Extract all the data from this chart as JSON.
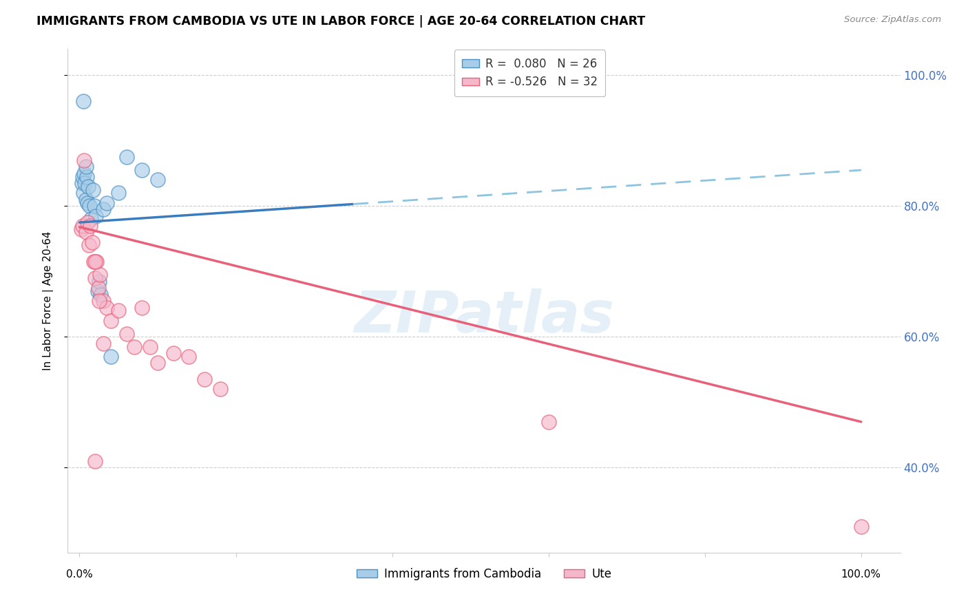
{
  "title": "IMMIGRANTS FROM CAMBODIA VS UTE IN LABOR FORCE | AGE 20-64 CORRELATION CHART",
  "source": "Source: ZipAtlas.com",
  "ylabel": "In Labor Force | Age 20-64",
  "legend_label1": "Immigrants from Cambodia",
  "legend_label2": "Ute",
  "R1": 0.08,
  "N1": 26,
  "R2": -0.526,
  "N2": 32,
  "color_blue_fill": "#a8cde8",
  "color_pink_fill": "#f5b8cb",
  "color_blue_edge": "#4a90c4",
  "color_pink_edge": "#e8607a",
  "color_blue_line": "#3a7cbd",
  "color_pink_line": "#e8607a",
  "color_dashed": "#8dc4e0",
  "watermark_text": "ZIPatlas",
  "blue_x": [
    0.3,
    0.4,
    0.5,
    0.6,
    0.7,
    0.8,
    0.9,
    1.0,
    1.1,
    1.3,
    1.5,
    1.7,
    1.9,
    2.1,
    2.3,
    2.5,
    2.7,
    3.0,
    3.5,
    4.0,
    5.0,
    6.0,
    8.0,
    10.0,
    0.5,
    0.8
  ],
  "blue_y": [
    83.5,
    84.5,
    82.0,
    85.0,
    83.5,
    81.0,
    84.5,
    80.5,
    83.0,
    80.0,
    78.0,
    82.5,
    80.0,
    78.5,
    67.0,
    68.5,
    66.5,
    79.5,
    80.5,
    57.0,
    82.0,
    87.5,
    85.5,
    84.0,
    96.0,
    86.0
  ],
  "pink_x": [
    0.2,
    0.4,
    0.6,
    0.8,
    1.0,
    1.2,
    1.4,
    1.6,
    1.8,
    2.0,
    2.2,
    2.4,
    2.6,
    3.0,
    3.5,
    4.0,
    5.0,
    6.0,
    7.0,
    8.0,
    9.0,
    10.0,
    12.0,
    14.0,
    16.0,
    18.0,
    2.0,
    2.5,
    3.0,
    2.0,
    60.0,
    100.0
  ],
  "pink_y": [
    76.5,
    77.0,
    87.0,
    76.0,
    77.5,
    74.0,
    77.0,
    74.5,
    71.5,
    69.0,
    71.5,
    67.5,
    69.5,
    65.5,
    64.5,
    62.5,
    64.0,
    60.5,
    58.5,
    64.5,
    58.5,
    56.0,
    57.5,
    57.0,
    53.5,
    52.0,
    71.5,
    65.5,
    59.0,
    41.0,
    47.0,
    31.0
  ],
  "blue_line_x0": 0.0,
  "blue_line_x1": 100.0,
  "blue_line_y0": 77.5,
  "blue_line_y1": 85.5,
  "blue_solid_end": 35.0,
  "pink_line_x0": 0.0,
  "pink_line_x1": 100.0,
  "pink_line_y0": 76.8,
  "pink_line_y1": 47.0,
  "ylim": [
    27.0,
    104.0
  ],
  "xlim": [
    -1.5,
    105.0
  ],
  "yticks": [
    40.0,
    60.0,
    80.0,
    100.0
  ],
  "ytick_labels": [
    "40.0%",
    "60.0%",
    "80.0%",
    "100.0%"
  ],
  "xtick_label_left": "0.0%",
  "xtick_label_right": "100.0%"
}
